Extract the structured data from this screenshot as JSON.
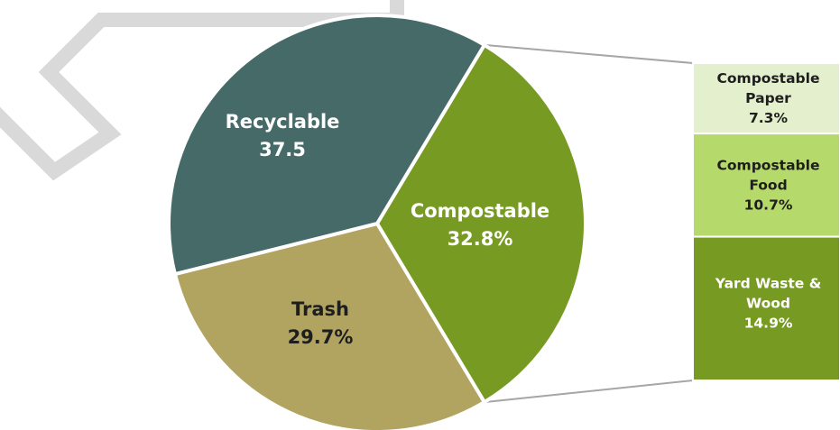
{
  "chart_data": {
    "type": "pie",
    "slices": [
      {
        "label": "Recyclable",
        "value_label": "37.5",
        "value": 37.5,
        "color": "#466a68",
        "text_color": "#ffffff"
      },
      {
        "label": "Compostable",
        "value_label": "32.8%",
        "value": 32.8,
        "color": "#779a23",
        "text_color": "#ffffff"
      },
      {
        "label": "Trash",
        "value_label": "29.7%",
        "value": 29.7,
        "color": "#b1a460",
        "text_color": "#1e1e1e"
      }
    ],
    "breakdown": {
      "of": "Compostable",
      "segments": [
        {
          "lines": [
            "Compostable",
            "Paper",
            "7.3%"
          ],
          "value": 7.3,
          "color": "#e3efcd",
          "text_color": "#1e1e1e"
        },
        {
          "lines": [
            "Compostable",
            "Food",
            "10.7%"
          ],
          "value": 10.7,
          "color": "#b5d96a",
          "text_color": "#1e1e1e"
        },
        {
          "lines": [
            "Yard Waste &",
            "Wood",
            "14.9%"
          ],
          "value": 14.9,
          "color": "#779a23",
          "text_color": "#ffffff"
        }
      ]
    }
  },
  "colors": {
    "connector": "#a6a6a6",
    "slice_border": "#ffffff",
    "watermark": "#d9d9d9"
  }
}
